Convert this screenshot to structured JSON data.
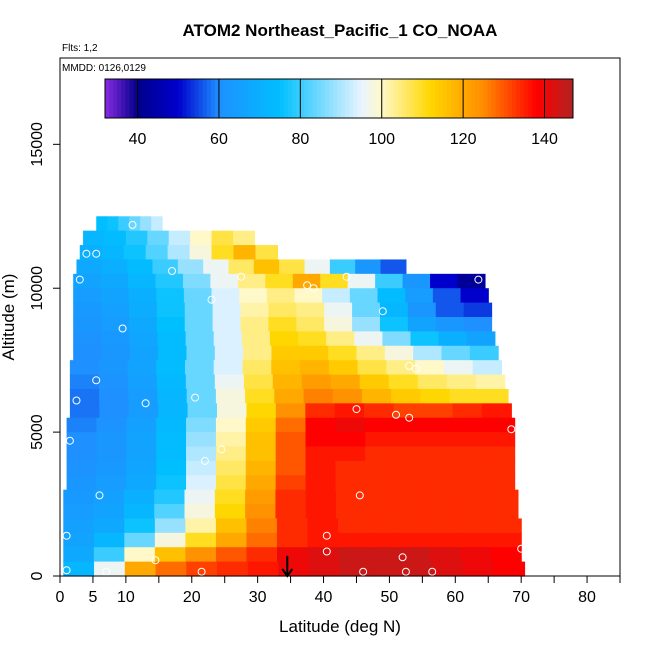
{
  "chart_data": {
    "type": "heatmap",
    "title": "ATOM2 Northeast_Pacific_1 CO_NOAA",
    "flights_label": "Flts: 1,2",
    "dates_label": "MMDD: 0126,0129",
    "xlabel": "Latitude (deg N)",
    "ylabel": "Altitude (m)",
    "xlim": [
      0,
      85
    ],
    "ylim": [
      0,
      18000
    ],
    "x_ticks": [
      0,
      5,
      10,
      20,
      30,
      40,
      50,
      60,
      70,
      80
    ],
    "x_minor_ticks": [
      15,
      25,
      35,
      45,
      55,
      65,
      75,
      85
    ],
    "y_ticks": [
      0,
      5000,
      10000,
      15000
    ],
    "colorbar": {
      "min": 32,
      "max": 147,
      "ticks": [
        40,
        60,
        80,
        100,
        120,
        140
      ],
      "colors": [
        "#8a2be2",
        "#00008b",
        "#0000cd",
        "#1e90ff",
        "#00bfff",
        "#e8f4ff",
        "#fff8c8",
        "#ffd700",
        "#ff8c00",
        "#ff0000",
        "#b22222"
      ],
      "stops": [
        32,
        40,
        50,
        60,
        75,
        95,
        100,
        112,
        125,
        138,
        147
      ]
    },
    "curtain": {
      "rows": [
        {
          "alt": [
            12000,
            12500
          ],
          "lat": [
            5.5,
            15.5
          ],
          "values": [
            75,
            76,
            80,
            84,
            88,
            92
          ]
        },
        {
          "alt": [
            11500,
            12000
          ],
          "lat": [
            3.5,
            29.5
          ],
          "values": [
            72,
            74,
            78,
            84,
            92,
            100,
            108,
            104
          ]
        },
        {
          "alt": [
            11000,
            11500
          ],
          "lat": [
            3.0,
            33.0
          ],
          "values": [
            70,
            72,
            76,
            82,
            90,
            98,
            110,
            118,
            108
          ]
        },
        {
          "alt": [
            10500,
            11000
          ],
          "lat": [
            2.5,
            52.5
          ],
          "values": [
            68,
            70,
            74,
            80,
            88,
            96,
            106,
            116,
            108,
            96,
            80,
            62,
            56
          ]
        },
        {
          "alt": [
            10000,
            10500
          ],
          "lat": [
            2.0,
            64.5
          ],
          "values": [
            66,
            68,
            72,
            78,
            86,
            96,
            104,
            110,
            120,
            110,
            96,
            80,
            62,
            50,
            42
          ]
        },
        {
          "alt": [
            9500,
            10000
          ],
          "lat": [
            2.0,
            65.0
          ],
          "values": [
            64,
            66,
            70,
            76,
            84,
            94,
            100,
            104,
            100,
            92,
            84,
            74,
            64,
            56,
            50
          ]
        },
        {
          "alt": [
            9000,
            9500
          ],
          "lat": [
            2.0,
            65.5
          ],
          "values": [
            63,
            65,
            69,
            76,
            84,
            94,
            102,
            106,
            104,
            96,
            84,
            72,
            62,
            56,
            54
          ]
        },
        {
          "alt": [
            8500,
            9000
          ],
          "lat": [
            2.0,
            65.5
          ],
          "values": [
            62,
            64,
            68,
            75,
            84,
            94,
            104,
            110,
            106,
            98,
            88,
            76,
            66,
            62,
            60
          ]
        },
        {
          "alt": [
            8000,
            8500
          ],
          "lat": [
            2.0,
            66.0
          ],
          "values": [
            61,
            63,
            67,
            74,
            84,
            94,
            104,
            112,
            110,
            104,
            96,
            86,
            76,
            70,
            66
          ]
        },
        {
          "alt": [
            7500,
            8000
          ],
          "lat": [
            2.0,
            66.5
          ],
          "values": [
            60,
            62,
            66,
            74,
            84,
            94,
            104,
            114,
            114,
            110,
            104,
            98,
            90,
            84,
            80
          ]
        },
        {
          "alt": [
            7000,
            7500
          ],
          "lat": [
            1.5,
            67.0
          ],
          "values": [
            60,
            62,
            66,
            74,
            84,
            94,
            106,
            116,
            118,
            114,
            108,
            104,
            100,
            96,
            92
          ]
        },
        {
          "alt": [
            6500,
            7000
          ],
          "lat": [
            1.5,
            67.5
          ],
          "values": [
            59,
            61,
            65,
            73,
            84,
            96,
            108,
            118,
            122,
            120,
            114,
            110,
            106,
            104,
            102
          ]
        },
        {
          "alt": [
            6000,
            6500
          ],
          "lat": [
            1.5,
            68.0
          ],
          "values": [
            58,
            60,
            64,
            72,
            84,
            98,
            110,
            120,
            126,
            124,
            118,
            114,
            112,
            110,
            110
          ]
        },
        {
          "alt": [
            5500,
            6000
          ],
          "lat": [
            1.5,
            68.5
          ],
          "values": [
            58,
            60,
            64,
            72,
            84,
            98,
            112,
            124,
            134,
            136,
            134,
            132,
            132,
            134,
            136
          ]
        },
        {
          "alt": [
            5000,
            5500
          ],
          "lat": [
            1.0,
            69.0
          ],
          "values": [
            59,
            61,
            65,
            73,
            86,
            100,
            114,
            128,
            138,
            140,
            138,
            138,
            138,
            138,
            138
          ]
        },
        {
          "alt": [
            4500,
            5000
          ],
          "lat": [
            1.0,
            69.0
          ],
          "values": [
            60,
            62,
            66,
            74,
            88,
            102,
            116,
            130,
            138,
            138,
            136,
            136,
            136,
            136,
            136
          ]
        },
        {
          "alt": [
            4000,
            4500
          ],
          "lat": [
            1.0,
            69.0
          ],
          "values": [
            60,
            62,
            66,
            74,
            90,
            104,
            116,
            130,
            136,
            136,
            134,
            134,
            134,
            134,
            134
          ]
        },
        {
          "alt": [
            3500,
            4000
          ],
          "lat": [
            1.0,
            69.0
          ],
          "values": [
            61,
            63,
            67,
            75,
            92,
            106,
            118,
            130,
            136,
            134,
            134,
            134,
            134,
            134,
            134
          ]
        },
        {
          "alt": [
            3000,
            3500
          ],
          "lat": [
            1.0,
            69.0
          ],
          "values": [
            62,
            64,
            68,
            76,
            94,
            108,
            120,
            132,
            136,
            134,
            134,
            134,
            134,
            134,
            134
          ]
        },
        {
          "alt": [
            2500,
            3000
          ],
          "lat": [
            0.5,
            69.5
          ],
          "values": [
            63,
            65,
            70,
            78,
            96,
            110,
            122,
            134,
            136,
            134,
            134,
            134,
            134,
            134,
            134
          ]
        },
        {
          "alt": [
            2000,
            2500
          ],
          "lat": [
            0.5,
            69.5
          ],
          "values": [
            64,
            66,
            72,
            82,
            98,
            112,
            124,
            134,
            136,
            134,
            134,
            134,
            134,
            134,
            134
          ]
        },
        {
          "alt": [
            1500,
            2000
          ],
          "lat": [
            0.5,
            70.0
          ],
          "values": [
            65,
            68,
            76,
            88,
            102,
            116,
            126,
            134,
            136,
            134,
            134,
            134,
            134,
            134,
            134
          ]
        },
        {
          "alt": [
            1000,
            1500
          ],
          "lat": [
            0.5,
            70.0
          ],
          "values": [
            66,
            72,
            84,
            98,
            110,
            120,
            128,
            134,
            136,
            136,
            136,
            136,
            136,
            136,
            136
          ]
        },
        {
          "alt": [
            500,
            1000
          ],
          "lat": [
            0.5,
            70.0
          ],
          "values": [
            68,
            80,
            100,
            116,
            124,
            130,
            134,
            140,
            142,
            144,
            144,
            144,
            142,
            140,
            138
          ]
        },
        {
          "alt": [
            0,
            500
          ],
          "lat": [
            0.5,
            70.5
          ],
          "values": [
            72,
            96,
            120,
            128,
            132,
            134,
            136,
            140,
            142,
            144,
            144,
            144,
            142,
            140,
            138
          ]
        }
      ]
    },
    "sample_points": [
      [
        11,
        12200
      ],
      [
        4,
        11200
      ],
      [
        5.5,
        11200
      ],
      [
        3,
        10300
      ],
      [
        17,
        10600
      ],
      [
        27.5,
        10400
      ],
      [
        37.5,
        10100
      ],
      [
        38.5,
        10000
      ],
      [
        43.5,
        10400
      ],
      [
        63.5,
        10300
      ],
      [
        23,
        9600
      ],
      [
        49,
        9200
      ],
      [
        9.5,
        8600
      ],
      [
        53,
        7300
      ],
      [
        54,
        7200
      ],
      [
        5.5,
        6800
      ],
      [
        2.5,
        6100
      ],
      [
        13,
        6000
      ],
      [
        20.5,
        6200
      ],
      [
        45,
        5800
      ],
      [
        51,
        5600
      ],
      [
        53,
        5500
      ],
      [
        68.5,
        5100
      ],
      [
        1.5,
        4700
      ],
      [
        24.5,
        4400
      ],
      [
        22,
        4000
      ],
      [
        6,
        2800
      ],
      [
        45.5,
        2800
      ],
      [
        1,
        1400
      ],
      [
        40.5,
        1400
      ],
      [
        40.5,
        850
      ],
      [
        14.5,
        550
      ],
      [
        52,
        650
      ],
      [
        70,
        950
      ],
      [
        7,
        150
      ],
      [
        21.5,
        150
      ],
      [
        46,
        150
      ],
      [
        52.5,
        150
      ],
      [
        56.5,
        150
      ],
      [
        1,
        200
      ]
    ],
    "annotation": {
      "type": "arrow",
      "x": 34.5,
      "y_from": 700,
      "y_to": 0
    }
  }
}
